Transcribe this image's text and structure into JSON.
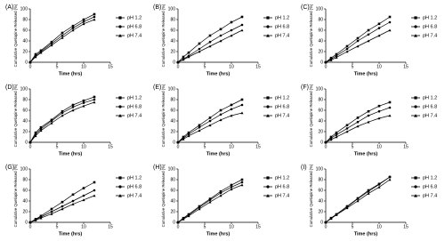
{
  "chart_data": [
    {
      "type": "line",
      "title": "(A)",
      "x_label": "Time (hrs)",
      "y_label": "Cumulative Quetiapine Released (%)",
      "x": [
        0,
        1,
        2,
        4,
        6,
        8,
        10,
        12
      ],
      "xlim": [
        0,
        15
      ],
      "ylim": [
        0,
        100
      ],
      "xticks": [
        0,
        5,
        10,
        15
      ],
      "yticks": [
        0,
        20,
        40,
        60,
        80,
        100
      ],
      "series": [
        {
          "name": "pH 1.2",
          "color": "#000000",
          "marker": "square",
          "values": [
            0,
            15,
            22,
            38,
            55,
            68,
            80,
            90
          ]
        },
        {
          "name": "pH 6.8",
          "color": "#000000",
          "marker": "circle",
          "values": [
            0,
            12,
            20,
            35,
            50,
            64,
            76,
            85
          ]
        },
        {
          "name": "pH 7.4",
          "color": "#000000",
          "marker": "triangle",
          "values": [
            0,
            10,
            18,
            32,
            46,
            60,
            72,
            80
          ]
        }
      ]
    },
    {
      "type": "line",
      "title": "(B)",
      "x_label": "Time (hrs)",
      "y_label": "Cumulative Quetiapine Released (%)",
      "x": [
        0,
        1,
        2,
        4,
        6,
        8,
        10,
        12
      ],
      "xlim": [
        0,
        15
      ],
      "ylim": [
        0,
        100
      ],
      "xticks": [
        0,
        5,
        10,
        15
      ],
      "yticks": [
        0,
        20,
        40,
        60,
        80,
        100
      ],
      "series": [
        {
          "name": "pH 1.2",
          "color": "#000000",
          "marker": "square",
          "values": [
            0,
            10,
            18,
            35,
            50,
            62,
            75,
            85
          ]
        },
        {
          "name": "pH 6.8",
          "color": "#000000",
          "marker": "circle",
          "values": [
            0,
            6,
            12,
            25,
            38,
            50,
            60,
            70
          ]
        },
        {
          "name": "pH 7.4",
          "color": "#000000",
          "marker": "triangle",
          "values": [
            0,
            5,
            10,
            20,
            30,
            40,
            50,
            60
          ]
        }
      ]
    },
    {
      "type": "line",
      "title": "(C)",
      "x_label": "Time (hrs)",
      "y_label": "Cumulative Quetiapine Released (%)",
      "x": [
        0,
        1,
        2,
        4,
        6,
        8,
        10,
        12
      ],
      "xlim": [
        0,
        15
      ],
      "ylim": [
        0,
        100
      ],
      "xticks": [
        0,
        5,
        10,
        15
      ],
      "yticks": [
        0,
        20,
        40,
        60,
        80,
        100
      ],
      "series": [
        {
          "name": "pH 1.2",
          "color": "#000000",
          "marker": "square",
          "values": [
            0,
            8,
            15,
            30,
            45,
            60,
            72,
            85
          ]
        },
        {
          "name": "pH 6.8",
          "color": "#000000",
          "marker": "circle",
          "values": [
            0,
            6,
            12,
            25,
            40,
            52,
            64,
            75
          ]
        },
        {
          "name": "pH 7.4",
          "color": "#000000",
          "marker": "triangle",
          "values": [
            0,
            4,
            9,
            20,
            30,
            40,
            50,
            60
          ]
        }
      ]
    },
    {
      "type": "line",
      "title": "(D)",
      "x_label": "Time (hrs)",
      "y_label": "Cumulative Quetiapine Released (%)",
      "x": [
        0,
        1,
        2,
        4,
        6,
        8,
        10,
        12
      ],
      "xlim": [
        0,
        15
      ],
      "ylim": [
        0,
        100
      ],
      "xticks": [
        0,
        5,
        10,
        15
      ],
      "yticks": [
        0,
        20,
        40,
        60,
        80,
        100
      ],
      "series": [
        {
          "name": "pH 1.2",
          "color": "#000000",
          "marker": "square",
          "values": [
            0,
            18,
            28,
            42,
            58,
            70,
            78,
            85
          ]
        },
        {
          "name": "pH 6.8",
          "color": "#000000",
          "marker": "circle",
          "values": [
            0,
            15,
            25,
            40,
            55,
            66,
            74,
            80
          ]
        },
        {
          "name": "pH 7.4",
          "color": "#000000",
          "marker": "triangle",
          "values": [
            0,
            12,
            22,
            36,
            50,
            60,
            68,
            75
          ]
        }
      ]
    },
    {
      "type": "line",
      "title": "(E)",
      "x_label": "Time (hrs)",
      "y_label": "Cumulative Quetiapine Released (%)",
      "x": [
        0,
        1,
        2,
        4,
        6,
        8,
        10,
        12
      ],
      "xlim": [
        0,
        15
      ],
      "ylim": [
        0,
        100
      ],
      "xticks": [
        0,
        5,
        10,
        15
      ],
      "yticks": [
        0,
        20,
        40,
        60,
        80,
        100
      ],
      "series": [
        {
          "name": "pH 1.2",
          "color": "#000000",
          "marker": "square",
          "values": [
            0,
            10,
            18,
            32,
            46,
            60,
            70,
            80
          ]
        },
        {
          "name": "pH 6.8",
          "color": "#000000",
          "marker": "circle",
          "values": [
            0,
            8,
            15,
            28,
            40,
            52,
            62,
            70
          ]
        },
        {
          "name": "pH 7.4",
          "color": "#000000",
          "marker": "triangle",
          "values": [
            0,
            6,
            12,
            22,
            32,
            42,
            50,
            55
          ]
        }
      ]
    },
    {
      "type": "line",
      "title": "(F)",
      "x_label": "Time (hrs)",
      "y_label": "Cumulative Quetiapine Released (%)",
      "x": [
        0,
        1,
        2,
        4,
        6,
        8,
        10,
        12
      ],
      "xlim": [
        0,
        15
      ],
      "ylim": [
        0,
        100
      ],
      "xticks": [
        0,
        5,
        10,
        15
      ],
      "yticks": [
        0,
        20,
        40,
        60,
        80,
        100
      ],
      "series": [
        {
          "name": "pH 1.2",
          "color": "#000000",
          "marker": "square",
          "values": [
            0,
            10,
            18,
            32,
            46,
            58,
            68,
            75
          ]
        },
        {
          "name": "pH 6.8",
          "color": "#000000",
          "marker": "circle",
          "values": [
            0,
            8,
            14,
            26,
            38,
            50,
            58,
            65
          ]
        },
        {
          "name": "pH 7.4",
          "color": "#000000",
          "marker": "triangle",
          "values": [
            0,
            5,
            10,
            20,
            30,
            38,
            45,
            50
          ]
        }
      ]
    },
    {
      "type": "line",
      "title": "(G)",
      "x_label": "Time (hrs)",
      "y_label": "Cumulative Quetiapine Released (%)",
      "x": [
        0,
        1,
        2,
        4,
        6,
        8,
        10,
        12
      ],
      "xlim": [
        0,
        15
      ],
      "ylim": [
        0,
        100
      ],
      "xticks": [
        0,
        5,
        10,
        15
      ],
      "yticks": [
        0,
        20,
        40,
        60,
        80,
        100
      ],
      "series": [
        {
          "name": "pH 1.2",
          "color": "#000000",
          "marker": "square",
          "values": [
            0,
            6,
            12,
            25,
            38,
            52,
            64,
            75
          ]
        },
        {
          "name": "pH 6.8",
          "color": "#000000",
          "marker": "circle",
          "values": [
            0,
            5,
            10,
            20,
            30,
            40,
            50,
            60
          ]
        },
        {
          "name": "pH 7.4",
          "color": "#000000",
          "marker": "triangle",
          "values": [
            0,
            4,
            8,
            16,
            25,
            34,
            42,
            50
          ]
        }
      ]
    },
    {
      "type": "line",
      "title": "(H)",
      "x_label": "Time (hrs)",
      "y_label": "Cumulative Quetiapine Released (%)",
      "x": [
        0,
        1,
        2,
        4,
        6,
        8,
        10,
        12
      ],
      "xlim": [
        0,
        15
      ],
      "ylim": [
        0,
        100
      ],
      "xticks": [
        0,
        5,
        10,
        15
      ],
      "yticks": [
        0,
        20,
        40,
        60,
        80,
        100
      ],
      "series": [
        {
          "name": "pH 1.2",
          "color": "#000000",
          "marker": "square",
          "values": [
            0,
            8,
            15,
            30,
            44,
            58,
            70,
            80
          ]
        },
        {
          "name": "pH 6.8",
          "color": "#000000",
          "marker": "circle",
          "values": [
            0,
            7,
            14,
            28,
            42,
            55,
            66,
            75
          ]
        },
        {
          "name": "pH 7.4",
          "color": "#000000",
          "marker": "triangle",
          "values": [
            0,
            6,
            12,
            25,
            38,
            50,
            62,
            70
          ]
        }
      ]
    },
    {
      "type": "line",
      "title": "(I)",
      "x_label": "Time (hrs)",
      "y_label": "Cumulative Quetiapine Released (%)",
      "x": [
        0,
        1,
        2,
        4,
        6,
        8,
        10,
        12
      ],
      "xlim": [
        0,
        15
      ],
      "ylim": [
        0,
        100
      ],
      "xticks": [
        0,
        5,
        10,
        15
      ],
      "yticks": [
        0,
        20,
        40,
        60,
        80,
        100
      ],
      "series": [
        {
          "name": "pH 1.2",
          "color": "#000000",
          "marker": "square",
          "values": [
            0,
            8,
            15,
            30,
            45,
            60,
            72,
            85
          ]
        },
        {
          "name": "pH 6.8",
          "color": "#000000",
          "marker": "circle",
          "values": [
            0,
            8,
            15,
            29,
            44,
            58,
            71,
            85
          ]
        },
        {
          "name": "pH 7.4",
          "color": "#000000",
          "marker": "triangle",
          "values": [
            0,
            7,
            14,
            27,
            40,
            54,
            66,
            80
          ]
        }
      ]
    }
  ]
}
